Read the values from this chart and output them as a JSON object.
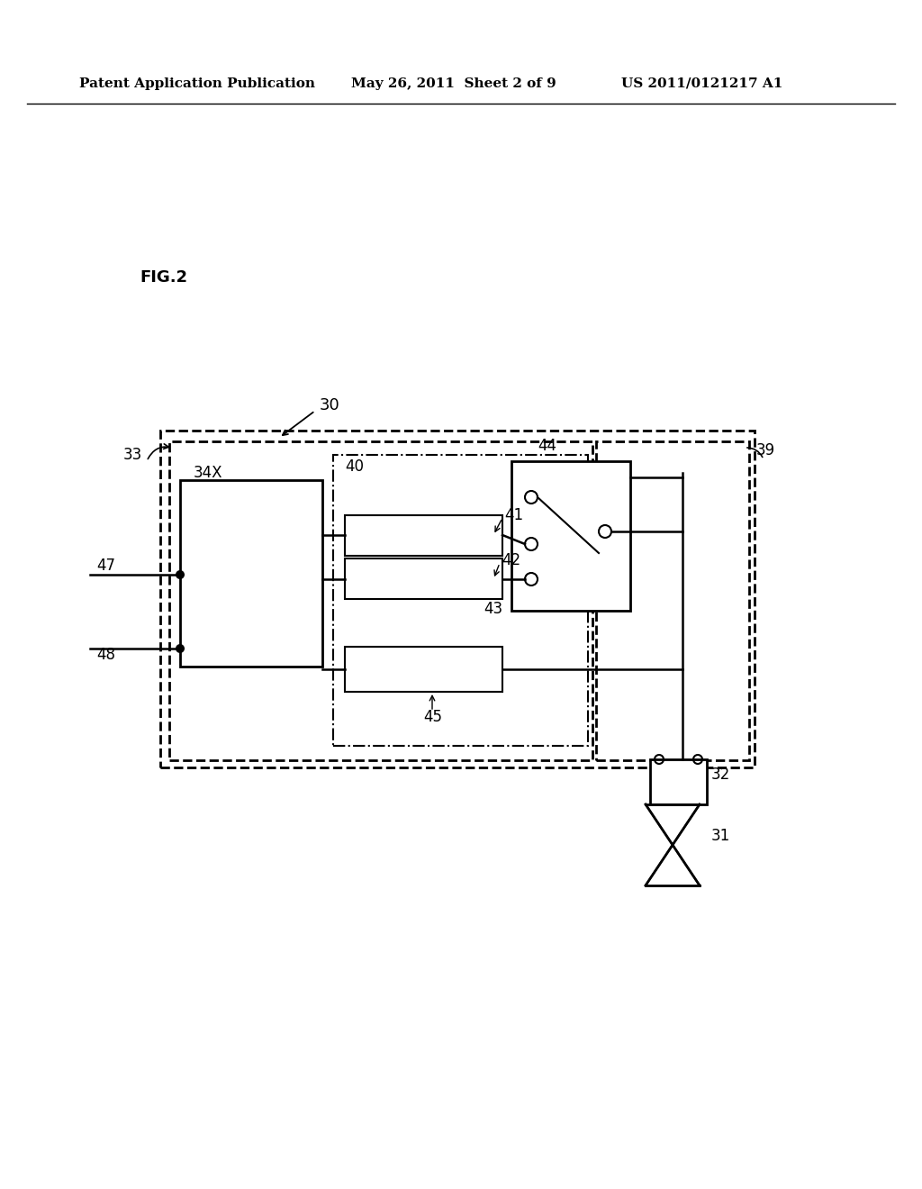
{
  "bg_color": "#ffffff",
  "header_left": "Patent Application Publication",
  "header_mid": "May 26, 2011  Sheet 2 of 9",
  "header_right": "US 2011/0121217 A1",
  "fig_label": "FIG.2",
  "label_30": "30",
  "label_31": "31",
  "label_32": "32",
  "label_33": "33",
  "label_34X": "34X",
  "label_39": "39",
  "label_40": "40",
  "label_41": "41",
  "label_42": "42",
  "label_43": "43",
  "label_44": "44",
  "label_45": "45",
  "label_47": "47",
  "label_48": "48"
}
